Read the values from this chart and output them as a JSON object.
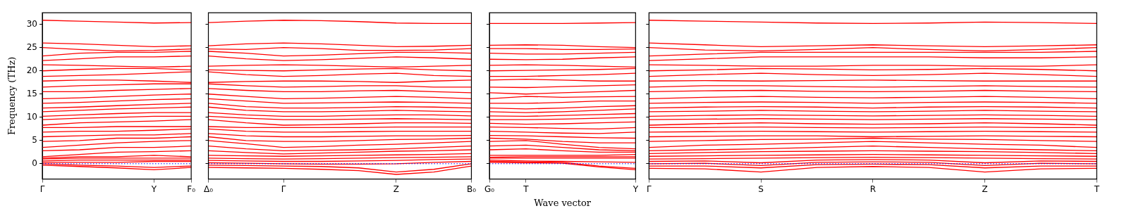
{
  "chart_data": [
    {
      "type": "line",
      "ylabel": "Frequency (THz)",
      "categories": [
        "Γ",
        null,
        null,
        "Y",
        "F₀"
      ],
      "ylim": [
        -3.3,
        32.5
      ],
      "yticks": [
        0,
        5,
        10,
        15,
        20,
        25,
        30
      ],
      "ref_lines": [
        {
          "axis": "y",
          "value": 0,
          "color": "#0000ff",
          "line_style": "dotted"
        }
      ],
      "series": [
        {
          "color": "#ff0000",
          "values": [
            30.9,
            30.7,
            30.5,
            30.3,
            30.4
          ]
        },
        {
          "color": "#ff0000",
          "values": [
            26,
            25.8,
            25.5,
            25.2,
            25.4
          ]
        },
        {
          "color": "#ff0000",
          "values": [
            25,
            24.6,
            24.3,
            24.4,
            24.7
          ]
        },
        {
          "color": "#ff0000",
          "values": [
            23.2,
            23.8,
            24,
            24,
            24.2
          ]
        },
        {
          "color": "#ff0000",
          "values": [
            22.2,
            22.6,
            23,
            23,
            23.2
          ]
        },
        {
          "color": "#ff0000",
          "values": [
            21.3,
            21.2,
            21,
            20.8,
            21
          ]
        },
        {
          "color": "#ff0000",
          "values": [
            20,
            20.3,
            20.5,
            20.5,
            20.2
          ]
        },
        {
          "color": "#ff0000",
          "values": [
            18.8,
            19,
            19.2,
            19.5,
            19.8
          ]
        },
        {
          "color": "#ff0000",
          "values": [
            17.8,
            18,
            18,
            17.8,
            17.5
          ]
        },
        {
          "color": "#ff0000",
          "values": [
            16.5,
            16.8,
            17,
            17.2,
            17.2
          ]
        },
        {
          "color": "#ff0000",
          "values": [
            15.5,
            15.5,
            15.8,
            16,
            16.2
          ]
        },
        {
          "color": "#ff0000",
          "values": [
            14,
            14.2,
            14.5,
            14.8,
            15
          ]
        },
        {
          "color": "#ff0000",
          "values": [
            13,
            13.2,
            13.5,
            13.8,
            14
          ]
        },
        {
          "color": "#ff0000",
          "values": [
            12,
            12.2,
            12.5,
            12.8,
            13
          ]
        },
        {
          "color": "#ff0000",
          "values": [
            11.2,
            11.5,
            11.8,
            12,
            12.2
          ]
        },
        {
          "color": "#ff0000",
          "values": [
            10.2,
            10.5,
            10.8,
            11,
            11
          ]
        },
        {
          "color": "#ff0000",
          "values": [
            9.5,
            9.8,
            10,
            10.2,
            10.2
          ]
        },
        {
          "color": "#ff0000",
          "values": [
            8.3,
            8.8,
            9,
            9.2,
            9.5
          ]
        },
        {
          "color": "#ff0000",
          "values": [
            7.8,
            7.8,
            8,
            8,
            8
          ]
        },
        {
          "color": "#ff0000",
          "values": [
            6.8,
            7,
            7,
            7.2,
            7.5
          ]
        },
        {
          "color": "#ff0000",
          "values": [
            5.8,
            6,
            6.2,
            6.2,
            6.5
          ]
        },
        {
          "color": "#ff0000",
          "values": [
            4.8,
            5,
            5.5,
            5.5,
            5.8
          ]
        },
        {
          "color": "#ff0000",
          "values": [
            3.5,
            4,
            4.5,
            4.8,
            5
          ]
        },
        {
          "color": "#ff0000",
          "values": [
            2.8,
            3,
            3.5,
            3.5,
            3.8
          ]
        },
        {
          "color": "#ff0000",
          "values": [
            1.5,
            2,
            2.5,
            2.6,
            2.8
          ]
        },
        {
          "color": "#ff0000",
          "values": [
            1.2,
            1.5,
            1.5,
            1.8,
            1.5
          ]
        },
        {
          "color": "#ff0000",
          "values": [
            1,
            1.2,
            1.2,
            1.2,
            1.2
          ]
        },
        {
          "color": "#ff0000",
          "values": [
            0.6,
            0.8,
            0.8,
            0.8,
            0.8
          ]
        },
        {
          "color": "#ff0000",
          "values": [
            0.3,
            0.3,
            0.3,
            0.5,
            0.5
          ]
        },
        {
          "color": "#ff0000",
          "values": [
            0,
            -0.3,
            -0.5,
            -0.8,
            -0.5
          ]
        },
        {
          "color": "#ff0000",
          "values": [
            -0.3,
            -0.6,
            -0.9,
            -1.3,
            -0.8
          ]
        }
      ]
    },
    {
      "type": "line",
      "tick_labels": "x",
      "categories": [
        "Δ₀",
        null,
        "Γ",
        null,
        null,
        "Z",
        null,
        "B₀"
      ],
      "ylim": [
        -3.3,
        32.5
      ],
      "yticks": [
        0,
        5,
        10,
        15,
        20,
        25,
        30
      ],
      "ref_lines": [
        {
          "axis": "y",
          "value": 0,
          "color": "#0000ff",
          "line_style": "dotted"
        }
      ],
      "series": [
        {
          "color": "#ff0000",
          "values": [
            30.4,
            30.7,
            30.9,
            30.8,
            30.6,
            30.3,
            30.2,
            30.2
          ]
        },
        {
          "color": "#ff0000",
          "values": [
            25.4,
            25.8,
            26,
            25.8,
            25.5,
            25.2,
            25.3,
            25.5
          ]
        },
        {
          "color": "#ff0000",
          "values": [
            24.7,
            24.6,
            25,
            24.8,
            24.4,
            24.4,
            24.5,
            24.8
          ]
        },
        {
          "color": "#ff0000",
          "values": [
            24.2,
            23.8,
            23.2,
            23.4,
            23.7,
            24,
            24,
            23.8
          ]
        },
        {
          "color": "#ff0000",
          "values": [
            23.2,
            22.6,
            22.2,
            22.4,
            22.7,
            23,
            22.8,
            22.5
          ]
        },
        {
          "color": "#ff0000",
          "values": [
            21,
            21.2,
            21.3,
            21.2,
            21,
            20.8,
            21,
            21.2
          ]
        },
        {
          "color": "#ff0000",
          "values": [
            20.2,
            20.1,
            20,
            20.2,
            20.4,
            20.5,
            20.2,
            20
          ]
        },
        {
          "color": "#ff0000",
          "values": [
            19.8,
            19.2,
            18.8,
            19,
            19.3,
            19.5,
            19,
            18.8
          ]
        },
        {
          "color": "#ff0000",
          "values": [
            17.5,
            17.7,
            17.8,
            17.8,
            17.7,
            17.5,
            17.8,
            18
          ]
        },
        {
          "color": "#ff0000",
          "values": [
            17.2,
            16.8,
            16.5,
            16.6,
            16.8,
            16.8,
            16.5,
            16.5
          ]
        },
        {
          "color": "#ff0000",
          "values": [
            16.2,
            15.8,
            15.5,
            15.5,
            15.7,
            15.8,
            15.5,
            15.3
          ]
        },
        {
          "color": "#ff0000",
          "values": [
            15,
            14.5,
            14,
            14.1,
            14.3,
            14.5,
            14.3,
            14
          ]
        },
        {
          "color": "#ff0000",
          "values": [
            14,
            13.5,
            13,
            13.1,
            13.2,
            13.3,
            13.2,
            13
          ]
        },
        {
          "color": "#ff0000",
          "values": [
            13,
            12.3,
            12,
            12,
            12.1,
            12.3,
            12.2,
            12
          ]
        },
        {
          "color": "#ff0000",
          "values": [
            12.2,
            11.5,
            11.2,
            11.2,
            11.3,
            11.5,
            11.3,
            11.2
          ]
        },
        {
          "color": "#ff0000",
          "values": [
            11,
            10.5,
            10.2,
            10.2,
            10.4,
            10.5,
            10.5,
            10.3
          ]
        },
        {
          "color": "#ff0000",
          "values": [
            10.2,
            9.8,
            9.5,
            9.5,
            9.6,
            9.7,
            9.6,
            9.5
          ]
        },
        {
          "color": "#ff0000",
          "values": [
            9.5,
            8.8,
            8.3,
            8.4,
            8.6,
            8.8,
            8.8,
            8.7
          ]
        },
        {
          "color": "#ff0000",
          "values": [
            8,
            7.8,
            7.8,
            7.8,
            7.8,
            7.9,
            7.9,
            7.9
          ]
        },
        {
          "color": "#ff0000",
          "values": [
            7.5,
            7,
            6.8,
            6.8,
            6.9,
            7,
            7,
            7
          ]
        },
        {
          "color": "#ff0000",
          "values": [
            6.5,
            6,
            5.8,
            5.8,
            5.9,
            6,
            6,
            6.1
          ]
        },
        {
          "color": "#ff0000",
          "values": [
            5.8,
            5,
            4.8,
            4.8,
            5,
            5.2,
            5.3,
            5.5
          ]
        },
        {
          "color": "#ff0000",
          "values": [
            5,
            4.3,
            3.5,
            3.7,
            4,
            4.2,
            4.5,
            4.8
          ]
        },
        {
          "color": "#ff0000",
          "values": [
            3.8,
            3.2,
            2.8,
            2.9,
            3,
            3.2,
            3.5,
            3.8
          ]
        },
        {
          "color": "#ff0000",
          "values": [
            2.8,
            2.4,
            2.1,
            2.3,
            2.5,
            2.7,
            2.8,
            3
          ]
        },
        {
          "color": "#ff0000",
          "values": [
            1.8,
            1.7,
            1.6,
            1.7,
            1.8,
            1.9,
            2,
            2.2
          ]
        },
        {
          "color": "#ff0000",
          "values": [
            1.2,
            1.1,
            1,
            1.1,
            1.2,
            1.3,
            1.4,
            1.5
          ]
        },
        {
          "color": "#ff0000",
          "values": [
            0.7,
            0.6,
            0.5,
            0.5,
            0.6,
            0.7,
            0.9,
            1
          ]
        },
        {
          "color": "#ff0000",
          "values": [
            0.2,
            0.1,
            0,
            -0.1,
            -0.1,
            0,
            0.3,
            0.5
          ]
        },
        {
          "color": "#ff0000",
          "values": [
            -0.3,
            -0.4,
            -0.5,
            -0.6,
            -0.9,
            -1.8,
            -1.2,
            0
          ]
        },
        {
          "color": "#ff0000",
          "values": [
            -0.8,
            -0.9,
            -1,
            -1.2,
            -1.5,
            -2.3,
            -1.8,
            -0.5
          ]
        }
      ]
    },
    {
      "type": "line",
      "tick_labels": "x",
      "xlabel": "Wave vector",
      "categories": [
        "G₀",
        "T",
        null,
        null,
        "Y"
      ],
      "ylim": [
        -3.3,
        32.5
      ],
      "yticks": [
        0,
        5,
        10,
        15,
        20,
        25,
        30
      ],
      "ref_lines": [
        {
          "axis": "y",
          "value": 0,
          "color": "#0000ff",
          "line_style": "dotted"
        }
      ],
      "series": [
        {
          "color": "#ff0000",
          "values": [
            30.2,
            30.2,
            30.2,
            30.3,
            30.4
          ]
        },
        {
          "color": "#ff0000",
          "values": [
            25.5,
            25.6,
            25.5,
            25.2,
            25
          ]
        },
        {
          "color": "#ff0000",
          "values": [
            24.8,
            24.8,
            24.6,
            24.6,
            24.7
          ]
        },
        {
          "color": "#ff0000",
          "values": [
            23.8,
            23.6,
            23.6,
            23.8,
            24
          ]
        },
        {
          "color": "#ff0000",
          "values": [
            22.5,
            22.4,
            22.5,
            22.8,
            23
          ]
        },
        {
          "color": "#ff0000",
          "values": [
            21.2,
            21.3,
            21.2,
            21,
            20.8
          ]
        },
        {
          "color": "#ff0000",
          "values": [
            20,
            20.1,
            20.2,
            20.3,
            20.5
          ]
        },
        {
          "color": "#ff0000",
          "values": [
            18.8,
            18.8,
            19,
            19.2,
            19.5
          ]
        },
        {
          "color": "#ff0000",
          "values": [
            18,
            18.2,
            18,
            17.8,
            17.8
          ]
        },
        {
          "color": "#ff0000",
          "values": [
            16.5,
            16.4,
            16.6,
            16.8,
            17
          ]
        },
        {
          "color": "#ff0000",
          "values": [
            15.3,
            15,
            15.3,
            15.5,
            15.8
          ]
        },
        {
          "color": "#ff0000",
          "values": [
            14,
            14.5,
            14.3,
            14.4,
            14.5
          ]
        },
        {
          "color": "#ff0000",
          "values": [
            13,
            13,
            13.2,
            13.5,
            13.5
          ]
        },
        {
          "color": "#ff0000",
          "values": [
            12,
            11.8,
            12,
            12.3,
            12.5
          ]
        },
        {
          "color": "#ff0000",
          "values": [
            11.2,
            11,
            11.2,
            11.5,
            11.8
          ]
        },
        {
          "color": "#ff0000",
          "values": [
            10.3,
            10.2,
            10.4,
            10.6,
            10.8
          ]
        },
        {
          "color": "#ff0000",
          "values": [
            9.5,
            9.5,
            9.6,
            9.8,
            10
          ]
        },
        {
          "color": "#ff0000",
          "values": [
            8.7,
            8.5,
            8.6,
            8.8,
            9
          ]
        },
        {
          "color": "#ff0000",
          "values": [
            7.9,
            7.8,
            7.6,
            7.5,
            7.8
          ]
        },
        {
          "color": "#ff0000",
          "values": [
            7,
            6.8,
            6.6,
            6.5,
            6.8
          ]
        },
        {
          "color": "#ff0000",
          "values": [
            6.1,
            6,
            5.8,
            5.6,
            5.5
          ]
        },
        {
          "color": "#ff0000",
          "values": [
            5.5,
            5.3,
            4.8,
            4.5,
            4.5
          ]
        },
        {
          "color": "#ff0000",
          "values": [
            4.8,
            5,
            4.2,
            3.5,
            3.2
          ]
        },
        {
          "color": "#ff0000",
          "values": [
            3.8,
            4,
            3.5,
            3,
            2.8
          ]
        },
        {
          "color": "#ff0000",
          "values": [
            3,
            3.2,
            2.8,
            2.5,
            2.5
          ]
        },
        {
          "color": "#ff0000",
          "values": [
            1.8,
            1.8,
            1.8,
            1.8,
            2
          ]
        },
        {
          "color": "#ff0000",
          "values": [
            1.4,
            1.5,
            1.5,
            1.5,
            1.5
          ]
        },
        {
          "color": "#ff0000",
          "values": [
            1.2,
            1.2,
            1.2,
            1.2,
            1.2
          ]
        },
        {
          "color": "#ff0000",
          "values": [
            0.8,
            0.6,
            0.5,
            0.4,
            0.3
          ]
        },
        {
          "color": "#ff0000",
          "values": [
            0.5,
            0.4,
            0.3,
            -0.5,
            -1
          ]
        },
        {
          "color": "#ff0000",
          "values": [
            0.3,
            0.2,
            0.1,
            -0.7,
            -1.3
          ]
        }
      ]
    },
    {
      "type": "line",
      "tick_labels": "x",
      "categories": [
        "Γ",
        null,
        "S",
        null,
        "R",
        null,
        "Z",
        null,
        "T"
      ],
      "ylim": [
        -3.3,
        32.5
      ],
      "yticks": [
        0,
        5,
        10,
        15,
        20,
        25,
        30
      ],
      "ref_lines": [
        {
          "axis": "y",
          "value": 0,
          "color": "#0000ff",
          "line_style": "dotted"
        }
      ],
      "series": [
        {
          "color": "#ff0000",
          "values": [
            30.9,
            30.7,
            30.5,
            30.3,
            30.2,
            30.3,
            30.5,
            30.4,
            30.2
          ]
        },
        {
          "color": "#ff0000",
          "values": [
            26,
            25.6,
            25.2,
            25.4,
            25.6,
            25.4,
            25.2,
            25.4,
            25.6
          ]
        },
        {
          "color": "#ff0000",
          "values": [
            25,
            24.5,
            24.3,
            24.6,
            25,
            24.6,
            24.3,
            24.6,
            25
          ]
        },
        {
          "color": "#ff0000",
          "values": [
            23.2,
            23.6,
            24,
            24,
            24,
            24,
            24,
            24,
            24.2
          ]
        },
        {
          "color": "#ff0000",
          "values": [
            22.2,
            22.6,
            23,
            23,
            23,
            23,
            22.8,
            22.8,
            23
          ]
        },
        {
          "color": "#ff0000",
          "values": [
            21.3,
            21.2,
            21,
            21,
            21.2,
            21.2,
            21,
            21,
            21.3
          ]
        },
        {
          "color": "#ff0000",
          "values": [
            20,
            20.2,
            20.5,
            20.4,
            20.2,
            20.3,
            20.5,
            20.3,
            20
          ]
        },
        {
          "color": "#ff0000",
          "values": [
            18.8,
            19.2,
            19.5,
            19.2,
            19,
            19.2,
            19.5,
            19.2,
            18.8
          ]
        },
        {
          "color": "#ff0000",
          "values": [
            17.8,
            17.9,
            17.8,
            17.9,
            18,
            17.9,
            17.8,
            17.8,
            17.8
          ]
        },
        {
          "color": "#ff0000",
          "values": [
            16.5,
            16.8,
            16.8,
            16.6,
            16.5,
            16.6,
            16.8,
            16.6,
            16.5
          ]
        },
        {
          "color": "#ff0000",
          "values": [
            15.5,
            15.7,
            15.8,
            15.6,
            15.5,
            15.6,
            15.8,
            15.6,
            15.5
          ]
        },
        {
          "color": "#ff0000",
          "values": [
            14,
            14.3,
            14.5,
            14.3,
            14.2,
            14.3,
            14.5,
            14.3,
            14
          ]
        },
        {
          "color": "#ff0000",
          "values": [
            13,
            13.2,
            13.3,
            13.2,
            13,
            13.2,
            13.3,
            13.2,
            13
          ]
        },
        {
          "color": "#ff0000",
          "values": [
            12,
            12.2,
            12.3,
            12.2,
            12,
            12.2,
            12.3,
            12.2,
            12
          ]
        },
        {
          "color": "#ff0000",
          "values": [
            11.2,
            11.3,
            11.5,
            11.3,
            11.2,
            11.3,
            11.5,
            11.3,
            11.2
          ]
        },
        {
          "color": "#ff0000",
          "values": [
            10.2,
            10.4,
            10.5,
            10.4,
            10.3,
            10.4,
            10.5,
            10.4,
            10.2
          ]
        },
        {
          "color": "#ff0000",
          "values": [
            9.5,
            9.6,
            9.7,
            9.6,
            9.5,
            9.6,
            9.7,
            9.6,
            9.5
          ]
        },
        {
          "color": "#ff0000",
          "values": [
            8.3,
            8.6,
            8.8,
            8.6,
            8.5,
            8.6,
            8.8,
            8.6,
            8.3
          ]
        },
        {
          "color": "#ff0000",
          "values": [
            7.8,
            7.8,
            7.9,
            7.8,
            7.7,
            7.8,
            7.9,
            7.8,
            7.8
          ]
        },
        {
          "color": "#ff0000",
          "values": [
            6.8,
            6.9,
            7,
            6.9,
            6.8,
            6.9,
            7,
            6.9,
            6.8
          ]
        },
        {
          "color": "#ff0000",
          "values": [
            5.8,
            5.9,
            6,
            6,
            5.8,
            5.9,
            6,
            5.9,
            5.8
          ]
        },
        {
          "color": "#ff0000",
          "values": [
            4.8,
            5,
            5.2,
            5.3,
            5.5,
            5.3,
            5.2,
            5,
            4.8
          ]
        },
        {
          "color": "#ff0000",
          "values": [
            3.5,
            4,
            4.2,
            4.5,
            4.8,
            4.5,
            4.2,
            4,
            3.5
          ]
        },
        {
          "color": "#ff0000",
          "values": [
            2.8,
            3,
            3.2,
            3.5,
            3.8,
            3.5,
            3.2,
            3,
            2.8
          ]
        },
        {
          "color": "#ff0000",
          "values": [
            2.2,
            2.4,
            2.6,
            2.7,
            2.8,
            2.7,
            2.6,
            2.4,
            2.2
          ]
        },
        {
          "color": "#ff0000",
          "values": [
            1.6,
            1.7,
            1.8,
            1.9,
            2,
            1.9,
            1.8,
            1.7,
            1.6
          ]
        },
        {
          "color": "#ff0000",
          "values": [
            1,
            1.1,
            1.2,
            1.3,
            1.4,
            1.3,
            1.2,
            1.1,
            1
          ]
        },
        {
          "color": "#ff0000",
          "values": [
            0.5,
            0.6,
            0.2,
            0.8,
            0.9,
            0.8,
            0.2,
            0.6,
            0.5
          ]
        },
        {
          "color": "#ff0000",
          "values": [
            0,
            0.1,
            -0.4,
            0.3,
            0.4,
            0.3,
            -0.4,
            0.1,
            0
          ]
        },
        {
          "color": "#ff0000",
          "values": [
            -0.5,
            -0.5,
            -0.9,
            -0.2,
            -0.1,
            -0.2,
            -0.9,
            -0.5,
            -0.5
          ]
        },
        {
          "color": "#ff0000",
          "values": [
            -1,
            -1.1,
            -1.8,
            -0.8,
            -0.6,
            -0.8,
            -1.8,
            -1.1,
            -1
          ]
        }
      ]
    }
  ]
}
